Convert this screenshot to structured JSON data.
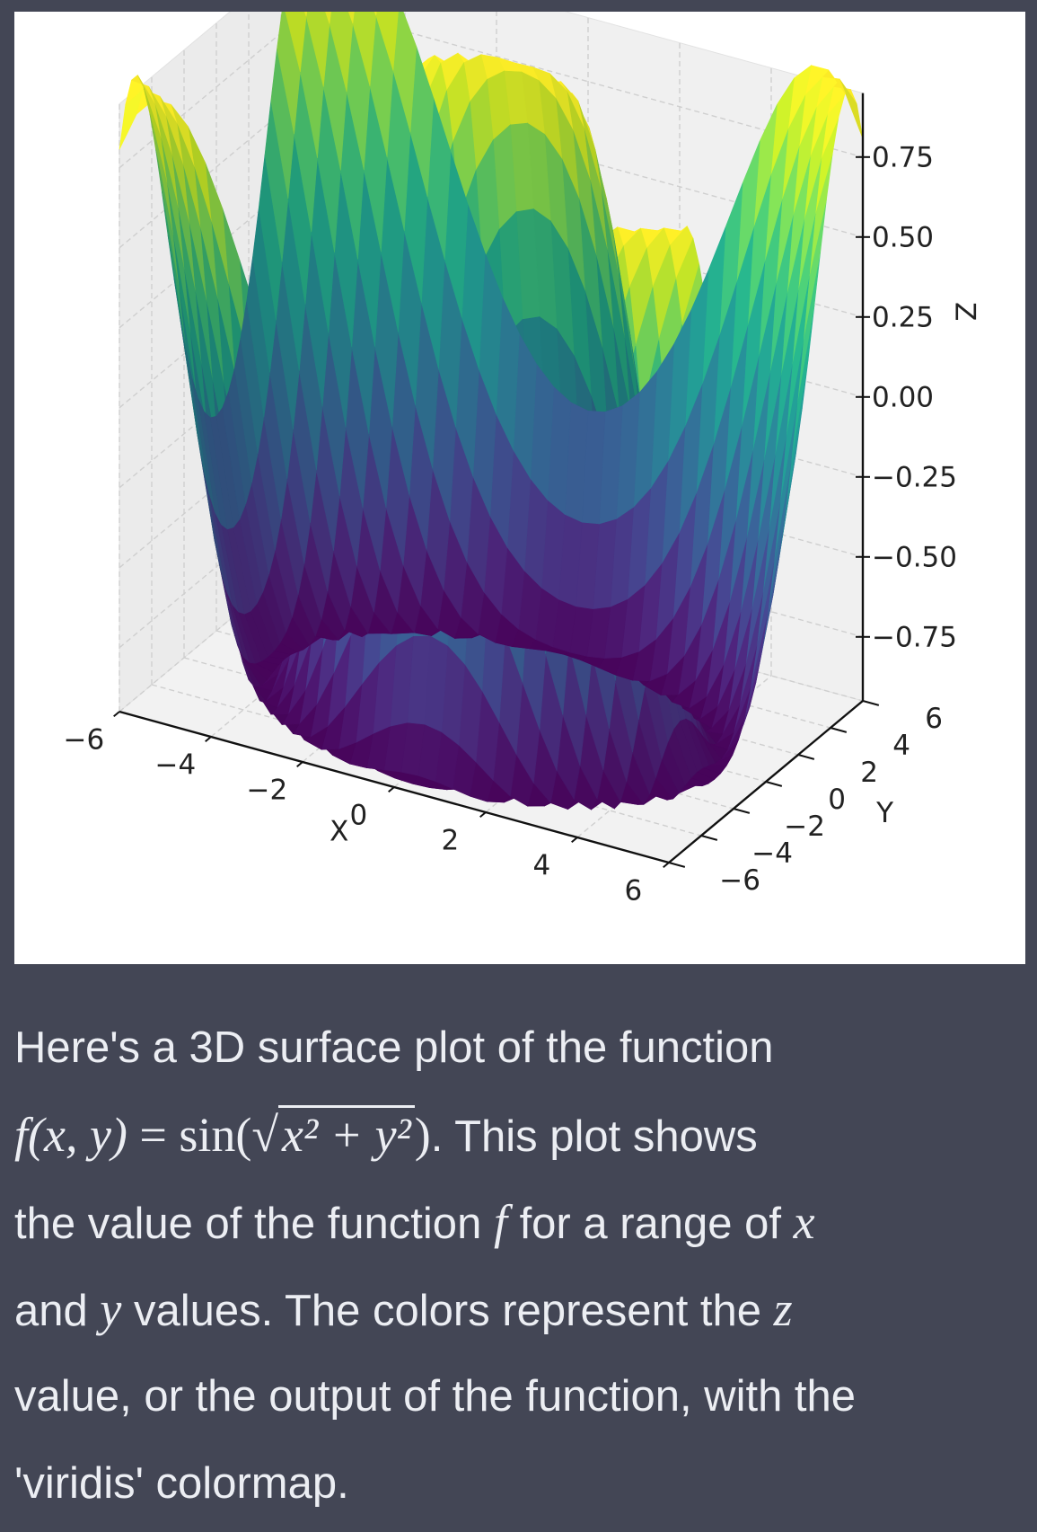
{
  "chart_data": {
    "type": "surface3d",
    "function": "z = sin(sqrt(x^2 + y^2))",
    "colormap": "viridis",
    "x": {
      "min": -6,
      "max": 6
    },
    "y": {
      "min": -6,
      "max": 6
    },
    "zlim": [
      -0.95,
      0.95
    ],
    "grid": true,
    "xlabel": "X",
    "ylabel": "Y",
    "zlabel": "Z",
    "x_ticks": [
      -6,
      -4,
      -2,
      0,
      2,
      4,
      6
    ],
    "y_ticks": [
      -6,
      -4,
      -2,
      0,
      2,
      4,
      6
    ],
    "z_ticks": [
      -0.75,
      -0.5,
      -0.25,
      0.0,
      0.25,
      0.5,
      0.75
    ],
    "x_tick_labels": [
      "−6",
      "−4",
      "−2",
      "0",
      "2",
      "4",
      "6"
    ],
    "y_tick_labels": [
      "−6",
      "−4",
      "−2",
      "0",
      "2",
      "4",
      "6"
    ],
    "z_tick_labels": [
      "−0.75",
      "−0.50",
      "−0.25",
      "0.00",
      "0.25",
      "0.50",
      "0.75"
    ]
  },
  "caption": {
    "line1": "Here's a 3D surface plot of the function",
    "formula_lhs": "f(x, y)",
    "formula_eq": " = sin(",
    "formula_rad": "x² + y²",
    "formula_close": ")",
    "line2_rest": ". This plot shows",
    "line3_a": "the value of the function ",
    "line3_f": "f",
    "line3_b": " for a range of ",
    "line3_x": "x",
    "line4_a": "and ",
    "line4_y": "y",
    "line4_b": " values. The colors represent the ",
    "line4_z": "z",
    "line5": "value, or the output of the function, with the",
    "line6": "'viridis' colormap."
  }
}
